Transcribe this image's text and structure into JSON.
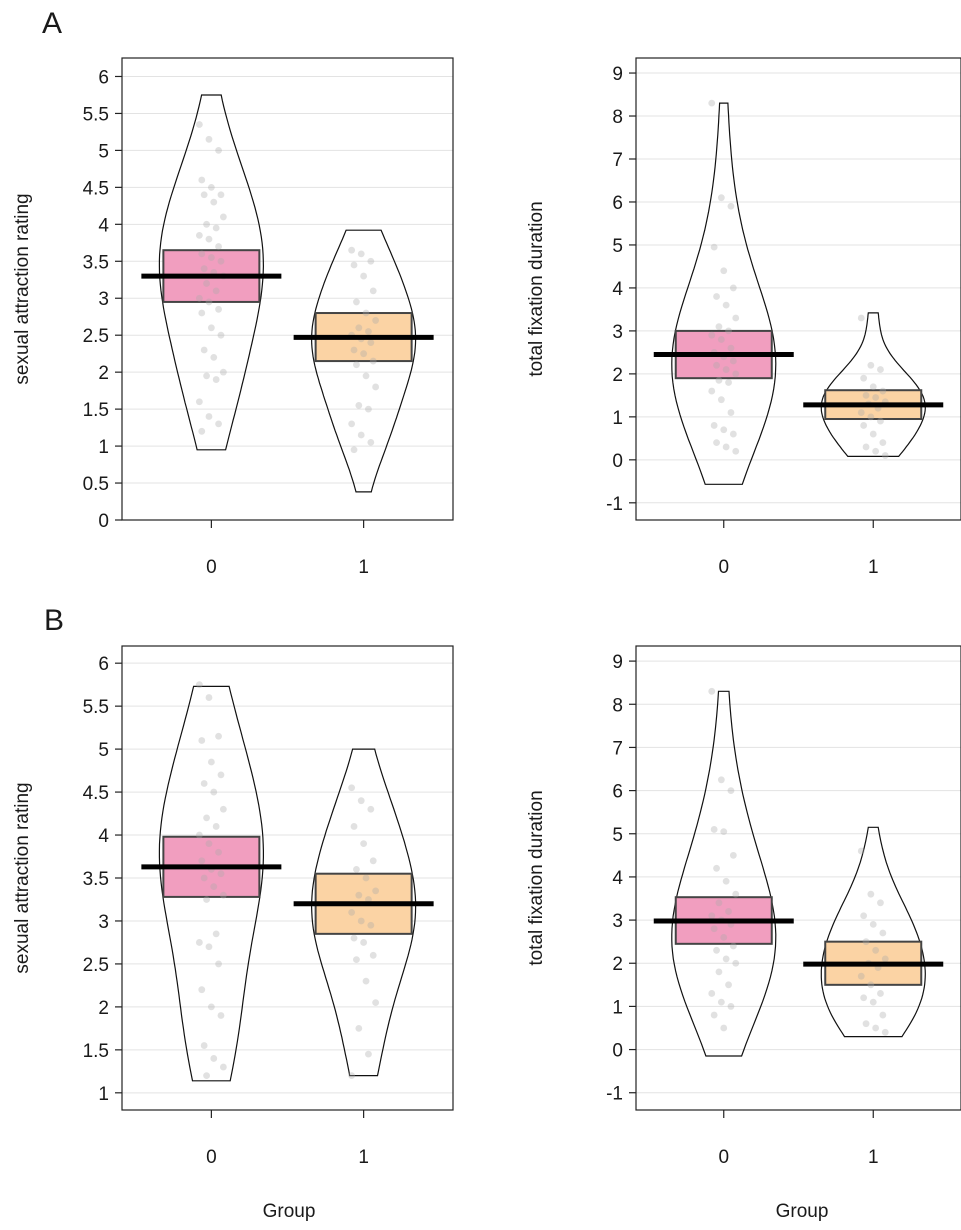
{
  "figure": {
    "panel_labels": [
      "A",
      "B"
    ],
    "xlabel": "Group"
  },
  "chart_data": [
    {
      "type": "pirate",
      "panel": "A",
      "ylabel": "sexual attraction rating",
      "ylim": [
        0,
        6.25
      ],
      "yticks": [
        0,
        0.5,
        1,
        1.5,
        2,
        2.5,
        3,
        3.5,
        4,
        4.5,
        5,
        5.5,
        6
      ],
      "grid": true,
      "categories": [
        "0",
        "1"
      ],
      "colors": [
        "#f19ebf",
        "#fbd3a4"
      ],
      "groups": [
        {
          "name": "0",
          "mean": 3.3,
          "ci": [
            2.95,
            3.65
          ],
          "range": [
            0.95,
            5.75
          ],
          "points": [
            5.35,
            5.15,
            5.0,
            4.6,
            4.5,
            4.4,
            4.4,
            4.3,
            4.1,
            4.0,
            3.95,
            3.85,
            3.8,
            3.7,
            3.6,
            3.55,
            3.5,
            3.4,
            3.35,
            3.3,
            3.2,
            3.1,
            3.0,
            2.95,
            2.85,
            2.8,
            2.6,
            2.5,
            2.3,
            2.2,
            2.0,
            1.95,
            1.9,
            1.6,
            1.4,
            1.3,
            1.2
          ]
        },
        {
          "name": "1",
          "mean": 2.47,
          "ci": [
            2.15,
            2.8
          ],
          "range": [
            0.38,
            3.92
          ],
          "points": [
            3.65,
            3.6,
            3.5,
            3.45,
            3.3,
            3.1,
            2.95,
            2.8,
            2.7,
            2.6,
            2.55,
            2.5,
            2.45,
            2.4,
            2.3,
            2.25,
            2.15,
            2.1,
            1.95,
            1.8,
            1.55,
            1.5,
            1.3,
            1.15,
            1.05,
            0.95
          ]
        }
      ]
    },
    {
      "type": "pirate",
      "panel": "A",
      "ylabel": "total fixation duration",
      "ylim": [
        -1.4,
        9.35
      ],
      "yticks": [
        -1,
        0,
        1,
        2,
        3,
        4,
        5,
        6,
        7,
        8,
        9
      ],
      "grid": true,
      "categories": [
        "0",
        "1"
      ],
      "colors": [
        "#f19ebf",
        "#fbd3a4"
      ],
      "groups": [
        {
          "name": "0",
          "mean": 2.45,
          "ci": [
            1.9,
            3.0
          ],
          "range": [
            -0.57,
            8.3
          ],
          "points": [
            8.3,
            6.1,
            5.9,
            4.95,
            4.4,
            4.0,
            3.8,
            3.6,
            3.3,
            3.1,
            3.0,
            2.9,
            2.8,
            2.6,
            2.5,
            2.4,
            2.3,
            2.2,
            2.1,
            2.0,
            1.85,
            1.8,
            1.6,
            1.4,
            1.1,
            0.8,
            0.7,
            0.6,
            0.4,
            0.3,
            0.2
          ]
        },
        {
          "name": "1",
          "mean": 1.28,
          "ci": [
            0.95,
            1.62
          ],
          "range": [
            0.08,
            3.42
          ],
          "points": [
            3.3,
            2.2,
            2.1,
            1.9,
            1.7,
            1.6,
            1.5,
            1.45,
            1.35,
            1.3,
            1.2,
            1.1,
            1.0,
            0.9,
            0.8,
            0.6,
            0.4,
            0.3,
            0.2,
            0.1
          ]
        }
      ]
    },
    {
      "type": "pirate",
      "panel": "B",
      "ylabel": "sexual attraction rating",
      "ylim": [
        0.8,
        6.2
      ],
      "yticks": [
        1,
        1.5,
        2,
        2.5,
        3,
        3.5,
        4,
        4.5,
        5,
        5.5,
        6
      ],
      "grid": true,
      "categories": [
        "0",
        "1"
      ],
      "colors": [
        "#f19ebf",
        "#fbd3a4"
      ],
      "groups": [
        {
          "name": "0",
          "mean": 3.63,
          "ci": [
            3.28,
            3.98
          ],
          "range": [
            1.14,
            5.73
          ],
          "points": [
            5.75,
            5.6,
            5.15,
            5.1,
            4.85,
            4.7,
            4.6,
            4.5,
            4.3,
            4.2,
            4.1,
            4.0,
            3.9,
            3.8,
            3.7,
            3.6,
            3.55,
            3.5,
            3.4,
            3.3,
            3.25,
            2.85,
            2.75,
            2.7,
            2.5,
            2.2,
            2.0,
            1.9,
            1.55,
            1.4,
            1.3,
            1.2
          ]
        },
        {
          "name": "1",
          "mean": 3.2,
          "ci": [
            2.85,
            3.55
          ],
          "range": [
            1.2,
            5.0
          ],
          "points": [
            4.55,
            4.4,
            4.3,
            4.1,
            3.9,
            3.7,
            3.6,
            3.5,
            3.35,
            3.3,
            3.25,
            3.1,
            3.0,
            2.95,
            2.8,
            2.75,
            2.6,
            2.55,
            2.3,
            2.05,
            1.75,
            1.45,
            1.2
          ]
        }
      ]
    },
    {
      "type": "pirate",
      "panel": "B",
      "ylabel": "total fixation duration",
      "ylim": [
        -1.4,
        9.35
      ],
      "yticks": [
        -1,
        0,
        1,
        2,
        3,
        4,
        5,
        6,
        7,
        8,
        9
      ],
      "grid": true,
      "categories": [
        "0",
        "1"
      ],
      "colors": [
        "#f19ebf",
        "#fbd3a4"
      ],
      "groups": [
        {
          "name": "0",
          "mean": 2.98,
          "ci": [
            2.45,
            3.53
          ],
          "range": [
            -0.15,
            8.3
          ],
          "points": [
            8.3,
            6.25,
            6.0,
            5.1,
            5.05,
            4.5,
            4.2,
            3.9,
            3.6,
            3.4,
            3.2,
            3.1,
            3.0,
            2.9,
            2.8,
            2.6,
            2.4,
            2.3,
            2.1,
            2.0,
            1.8,
            1.5,
            1.3,
            1.1,
            1.0,
            0.8,
            0.5
          ]
        },
        {
          "name": "1",
          "mean": 1.98,
          "ci": [
            1.5,
            2.5
          ],
          "range": [
            0.3,
            5.15
          ],
          "points": [
            4.6,
            3.6,
            3.4,
            3.1,
            2.9,
            2.7,
            2.5,
            2.3,
            2.1,
            2.0,
            1.9,
            1.7,
            1.5,
            1.3,
            1.2,
            1.1,
            0.8,
            0.6,
            0.5,
            0.4
          ]
        }
      ]
    }
  ]
}
